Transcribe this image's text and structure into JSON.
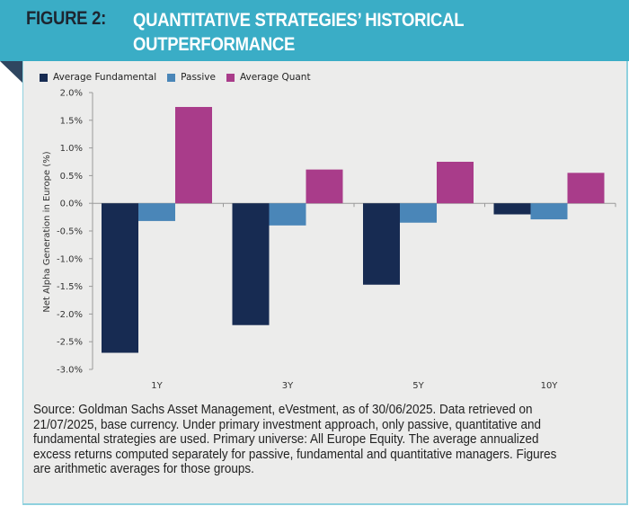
{
  "figure": {
    "label": "FIGURE 2:",
    "title": "QUANTITATIVE STRATEGIES’ HISTORICAL OUTPERFORMANCE",
    "header_color": "#3aadc6"
  },
  "source_note": "Source: Goldman Sachs Asset Management, eVestment, as of 30/06/2025. Data retrieved on 21/07/2025, base currency. Under primary investment approach, only passive, quantitative and fundamental strategies are used. Primary universe: All Europe Equity. The average annualized excess returns computed separately for passive, fundamental and quantitative managers. Figures are arithmetic averages for those groups.",
  "chart_data": {
    "type": "bar",
    "title": "",
    "xlabel": "",
    "ylabel": "Net Alpha Generation in Europe (%)",
    "categories": [
      "1Y",
      "3Y",
      "5Y",
      "10Y"
    ],
    "series": [
      {
        "name": "Average Fundamental",
        "color": "#172b52",
        "values": [
          -2.7,
          -2.2,
          -1.47,
          -0.2
        ]
      },
      {
        "name": "Passive",
        "color": "#4a86b8",
        "values": [
          -0.32,
          -0.4,
          -0.35,
          -0.29
        ]
      },
      {
        "name": "Average Quant",
        "color": "#a93c8a",
        "values": [
          1.74,
          0.61,
          0.75,
          0.55
        ]
      }
    ],
    "ylim": [
      -3.0,
      2.0
    ],
    "yticks": [
      2.0,
      1.5,
      1.0,
      0.5,
      0.0,
      -0.5,
      -1.0,
      -1.5,
      -2.0,
      -2.5,
      -3.0
    ],
    "ytick_labels": [
      "2.0%",
      "1.5%",
      "1.0%",
      "0.5%",
      "0.0%",
      "-0.5%",
      "-1.0%",
      "-1.5%",
      "-2.0%",
      "-2.5%",
      "-3.0%"
    ],
    "grid": false,
    "legend_position": "top-left"
  }
}
